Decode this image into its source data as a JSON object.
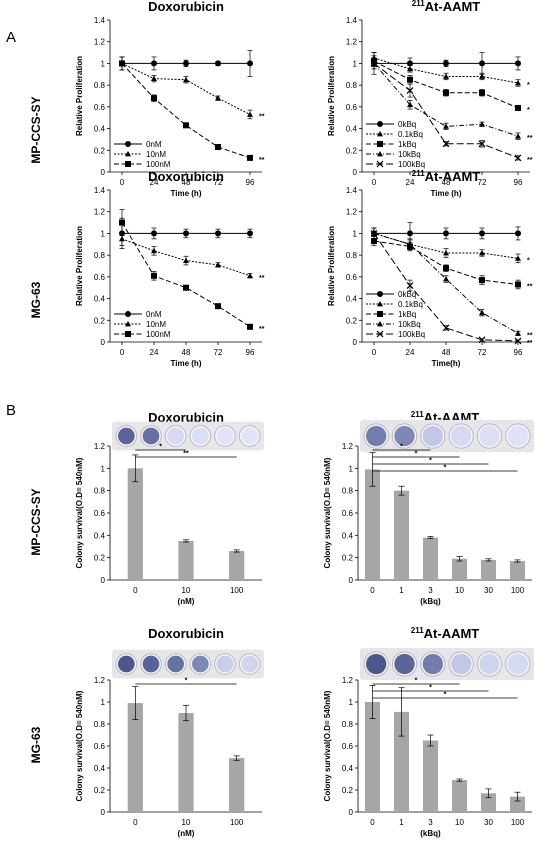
{
  "figure": {
    "panel_a_letter": "A",
    "panel_b_letter": "B",
    "row_labels": [
      "MP-CCS-SY",
      "MG-63",
      "MP-CCS-SY",
      "MG-63"
    ]
  },
  "chart_data": [
    {
      "id": "a1",
      "type": "line",
      "title": "Doxorubicin",
      "title_sup": "",
      "xlabel": "Time (h)",
      "ylabel": "Relative Proliferation",
      "x": [
        0,
        24,
        48,
        72,
        96
      ],
      "xticks": [
        "0",
        "24",
        "48",
        "72",
        "96"
      ],
      "ylim": [
        0,
        1.4
      ],
      "yticks": [
        "0",
        "0.2",
        "0.4",
        "0.6",
        "0.8",
        "1",
        "1.2",
        "1.4"
      ],
      "legend_position": "bottom-left",
      "series": [
        {
          "name": "0nM",
          "values": [
            1.0,
            1.0,
            1.0,
            1.0,
            1.0
          ],
          "errors": [
            0.06,
            0.06,
            0.03,
            0.02,
            0.12
          ],
          "marker": "circle",
          "dash": "solid",
          "sig": ""
        },
        {
          "name": "10nM",
          "values": [
            1.0,
            0.86,
            0.85,
            0.68,
            0.53
          ],
          "errors": [
            0.06,
            0.03,
            0.03,
            0.02,
            0.04
          ],
          "marker": "triangle",
          "dash": "short",
          "sig": "**"
        },
        {
          "name": "100nM",
          "values": [
            1.0,
            0.68,
            0.43,
            0.23,
            0.13
          ],
          "errors": [
            0.06,
            0.03,
            0.02,
            0.01,
            0.01
          ],
          "marker": "square",
          "dash": "long",
          "sig": "**"
        }
      ]
    },
    {
      "id": "a2",
      "type": "line",
      "title": "At-AAMT",
      "title_sup": "211",
      "xlabel": "Time (h)",
      "ylabel": "Relative Proliferation",
      "x": [
        0,
        24,
        48,
        72,
        96
      ],
      "xticks": [
        "0",
        "24",
        "48",
        "72",
        "96"
      ],
      "ylim": [
        0,
        1.4
      ],
      "yticks": [
        "0",
        "0.2",
        "0.4",
        "0.6",
        "0.8",
        "1",
        "1.2",
        "1.4"
      ],
      "legend_position": "bottom-left",
      "series": [
        {
          "name": "0kBq",
          "values": [
            1.0,
            1.0,
            1.0,
            1.0,
            1.0
          ],
          "errors": [
            0.1,
            0.05,
            0.03,
            0.1,
            0.06
          ],
          "marker": "circle",
          "dash": "solid",
          "sig": ""
        },
        {
          "name": "0.1kBq",
          "values": [
            1.05,
            0.95,
            0.88,
            0.88,
            0.82
          ],
          "errors": [
            0.05,
            0.03,
            0.03,
            0.03,
            0.03
          ],
          "marker": "triangle",
          "dash": "short",
          "sig": "*"
        },
        {
          "name": "1kBq",
          "values": [
            1.02,
            0.85,
            0.73,
            0.73,
            0.59
          ],
          "errors": [
            0.05,
            0.04,
            0.03,
            0.03,
            0.02
          ],
          "marker": "square",
          "dash": "long",
          "sig": "*"
        },
        {
          "name": "10kBq",
          "values": [
            1.0,
            0.62,
            0.42,
            0.44,
            0.33
          ],
          "errors": [
            0.05,
            0.04,
            0.03,
            0.02,
            0.03
          ],
          "marker": "triangle",
          "dash": "dashdot",
          "sig": "**"
        },
        {
          "name": "100kBq",
          "values": [
            1.0,
            0.75,
            0.26,
            0.26,
            0.13
          ],
          "errors": [
            0.05,
            0.06,
            0.02,
            0.03,
            0.02
          ],
          "marker": "x",
          "dash": "longdash",
          "sig": "**"
        }
      ]
    },
    {
      "id": "a3",
      "type": "line",
      "title": "Doxorubicin",
      "title_sup": "",
      "xlabel": "Time (h)",
      "ylabel": "Relative Proliferation",
      "x": [
        0,
        24,
        48,
        72,
        96
      ],
      "xticks": [
        "0",
        "24",
        "48",
        "72",
        "96"
      ],
      "ylim": [
        0,
        1.4
      ],
      "yticks": [
        "0",
        "0.2",
        "0.4",
        "0.6",
        "0.8",
        "1",
        "1.2",
        "1.4"
      ],
      "legend_position": "bottom-left",
      "series": [
        {
          "name": "0nM",
          "values": [
            1.0,
            1.0,
            1.0,
            1.0,
            1.0
          ],
          "errors": [
            0.14,
            0.05,
            0.04,
            0.04,
            0.04
          ],
          "marker": "circle",
          "dash": "solid",
          "sig": ""
        },
        {
          "name": "10nM",
          "values": [
            0.95,
            0.84,
            0.75,
            0.71,
            0.61
          ],
          "errors": [
            0.06,
            0.04,
            0.04,
            0.02,
            0.02
          ],
          "marker": "triangle",
          "dash": "short",
          "sig": "**"
        },
        {
          "name": "100nM",
          "values": [
            1.1,
            0.61,
            0.5,
            0.33,
            0.14
          ],
          "errors": [
            0.12,
            0.04,
            0.02,
            0.02,
            0.01
          ],
          "marker": "square",
          "dash": "long",
          "sig": "**"
        }
      ]
    },
    {
      "id": "a4",
      "type": "line",
      "title": "At-AAMT",
      "title_sup": "211",
      "xlabel": "Time(h)",
      "ylabel": "Relative Proliferation",
      "x": [
        0,
        24,
        48,
        72,
        96
      ],
      "xticks": [
        "0",
        "24",
        "48",
        "72",
        "96"
      ],
      "ylim": [
        0,
        1.4
      ],
      "yticks": [
        "0",
        "0.2",
        "0.4",
        "0.6",
        "0.8",
        "1",
        "1.2",
        "1.4"
      ],
      "legend_position": "bottom-left",
      "series": [
        {
          "name": "0kBq",
          "values": [
            1.0,
            1.0,
            1.0,
            1.0,
            1.0
          ],
          "errors": [
            0.05,
            0.1,
            0.05,
            0.05,
            0.06
          ],
          "marker": "circle",
          "dash": "solid",
          "sig": ""
        },
        {
          "name": "0.1kBq",
          "values": [
            1.0,
            0.9,
            0.82,
            0.82,
            0.77
          ],
          "errors": [
            0.05,
            0.05,
            0.04,
            0.03,
            0.04
          ],
          "marker": "triangle",
          "dash": "short",
          "sig": "*"
        },
        {
          "name": "1kBq",
          "values": [
            0.93,
            0.88,
            0.68,
            0.57,
            0.53
          ],
          "errors": [
            0.04,
            0.04,
            0.03,
            0.04,
            0.04
          ],
          "marker": "square",
          "dash": "long",
          "sig": "**"
        },
        {
          "name": "10kBq",
          "values": [
            1.0,
            0.9,
            0.58,
            0.27,
            0.08
          ],
          "errors": [
            0.05,
            0.04,
            0.03,
            0.03,
            0.02
          ],
          "marker": "triangle",
          "dash": "dashdot",
          "sig": "**"
        },
        {
          "name": "100kBq",
          "values": [
            1.0,
            0.52,
            0.13,
            0.02,
            0.01
          ],
          "errors": [
            0.05,
            0.05,
            0.02,
            0.01,
            0.01
          ],
          "marker": "x",
          "dash": "longdash",
          "sig": "**"
        }
      ]
    },
    {
      "id": "b1",
      "type": "bar",
      "title": "Doxorubicin",
      "title_sup": "",
      "xlabel": "(nM)",
      "ylabel": "Colony survival(O.D= 540nM)",
      "categories": [
        "0",
        "10",
        "100"
      ],
      "values": [
        1.0,
        0.35,
        0.26
      ],
      "errors": [
        0.12,
        0.01,
        0.01
      ],
      "ylim": [
        0,
        1.2
      ],
      "yticks": [
        "0",
        "0.2",
        "0.4",
        "0.6",
        "0.8",
        "1",
        "1.2"
      ],
      "wells": {
        "count": 6,
        "stain_levels": [
          0.85,
          0.8,
          0.2,
          0.15,
          0.1,
          0.08
        ]
      },
      "brackets": [
        {
          "from": 0,
          "to": 1,
          "label": "*"
        },
        {
          "from": 0,
          "to": 2,
          "label": "**"
        }
      ]
    },
    {
      "id": "b2",
      "type": "bar",
      "title": "At-AAMT",
      "title_sup": "211",
      "xlabel": "(kBq)",
      "ylabel": "Colony survival(O.D= 540nM)",
      "categories": [
        "0",
        "1",
        "3",
        "10",
        "30",
        "100"
      ],
      "values": [
        0.99,
        0.8,
        0.38,
        0.19,
        0.18,
        0.17
      ],
      "errors": [
        0.15,
        0.04,
        0.01,
        0.02,
        0.01,
        0.01
      ],
      "ylim": [
        0,
        1.2
      ],
      "yticks": [
        "0",
        "0.2",
        "0.4",
        "0.6",
        "0.8",
        "1",
        "1.2"
      ],
      "wells": {
        "count": 6,
        "stain_levels": [
          0.75,
          0.7,
          0.35,
          0.2,
          0.15,
          0.12
        ]
      },
      "brackets": [
        {
          "from": 0,
          "to": 2,
          "label": "*"
        },
        {
          "from": 0,
          "to": 3,
          "label": "*"
        },
        {
          "from": 0,
          "to": 4,
          "label": "*"
        },
        {
          "from": 0,
          "to": 5,
          "label": "*"
        }
      ]
    },
    {
      "id": "b3",
      "type": "bar",
      "title": "Doxorubicin",
      "title_sup": "",
      "xlabel": "(nM)",
      "ylabel": "Colony survival(O.D= 540nM)",
      "categories": [
        "0",
        "10",
        "100"
      ],
      "values": [
        0.99,
        0.9,
        0.49
      ],
      "errors": [
        0.15,
        0.07,
        0.02
      ],
      "ylim": [
        0,
        1.2
      ],
      "yticks": [
        "0",
        "0.2",
        "0.4",
        "0.6",
        "0.8",
        "1",
        "1.2"
      ],
      "wells": {
        "count": 6,
        "stain_levels": [
          0.9,
          0.85,
          0.8,
          0.7,
          0.3,
          0.25
        ]
      },
      "brackets": [
        {
          "from": 0,
          "to": 2,
          "label": "*"
        }
      ]
    },
    {
      "id": "b4",
      "type": "bar",
      "title": "At-AAMT",
      "title_sup": "211",
      "xlabel": "(kBq)",
      "ylabel": "Colony survival(O.D= 540nM)",
      "categories": [
        "0",
        "1",
        "3",
        "10",
        "30",
        "100"
      ],
      "values": [
        1.0,
        0.91,
        0.65,
        0.29,
        0.17,
        0.14
      ],
      "errors": [
        0.15,
        0.22,
        0.05,
        0.01,
        0.04,
        0.04
      ],
      "ylim": [
        0,
        1.2
      ],
      "yticks": [
        "0",
        "0.2",
        "0.4",
        "0.6",
        "0.8",
        "1",
        "1.2"
      ],
      "wells": {
        "count": 6,
        "stain_levels": [
          0.9,
          0.85,
          0.75,
          0.35,
          0.25,
          0.2
        ]
      },
      "brackets": [
        {
          "from": 0,
          "to": 3,
          "label": "*"
        },
        {
          "from": 0,
          "to": 4,
          "label": "*"
        },
        {
          "from": 0,
          "to": 5,
          "label": "*"
        }
      ]
    }
  ]
}
